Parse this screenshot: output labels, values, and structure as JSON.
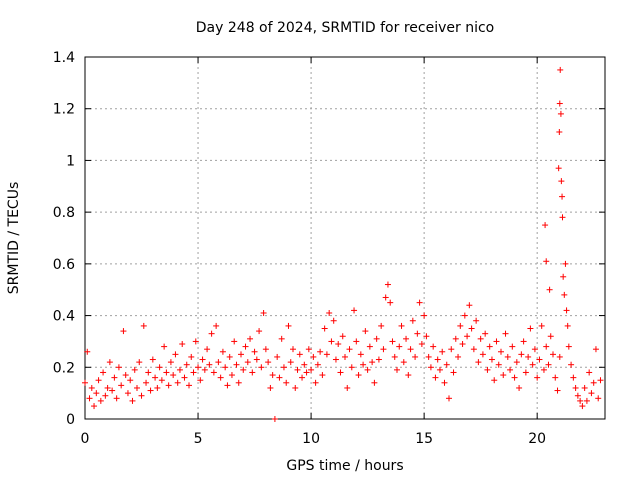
{
  "chart_data": {
    "type": "scatter",
    "title": "Day 248 of 2024, SRMTID for receiver nico",
    "xlabel": "GPS time / hours",
    "ylabel": "SRMTID / TECUs",
    "xlim": [
      0,
      23
    ],
    "ylim": [
      0,
      1.4
    ],
    "x_ticks": [
      0,
      5,
      10,
      15,
      20
    ],
    "x_tick_labels": [
      "0",
      "5",
      "10",
      "15",
      "20"
    ],
    "y_ticks": [
      0,
      0.2,
      0.4,
      0.6,
      0.8,
      1.0,
      1.2,
      1.4
    ],
    "y_tick_labels": [
      "0",
      "0.2",
      "0.4",
      "0.6",
      "0.8",
      "1",
      "1.2",
      "1.4"
    ],
    "grid": true,
    "marker": "+",
    "marker_color": "#ff0000",
    "series": [
      {
        "name": "SRMTID",
        "points": [
          [
            0.0,
            0.14
          ],
          [
            0.1,
            0.26
          ],
          [
            0.2,
            0.08
          ],
          [
            0.3,
            0.12
          ],
          [
            0.4,
            0.05
          ],
          [
            0.5,
            0.1
          ],
          [
            0.6,
            0.15
          ],
          [
            0.7,
            0.07
          ],
          [
            0.8,
            0.18
          ],
          [
            0.9,
            0.09
          ],
          [
            1.0,
            0.12
          ],
          [
            1.1,
            0.22
          ],
          [
            1.2,
            0.11
          ],
          [
            1.3,
            0.16
          ],
          [
            1.4,
            0.08
          ],
          [
            1.5,
            0.2
          ],
          [
            1.6,
            0.13
          ],
          [
            1.7,
            0.34
          ],
          [
            1.8,
            0.17
          ],
          [
            1.9,
            0.1
          ],
          [
            2.0,
            0.15
          ],
          [
            2.1,
            0.07
          ],
          [
            2.2,
            0.19
          ],
          [
            2.3,
            0.12
          ],
          [
            2.4,
            0.22
          ],
          [
            2.5,
            0.09
          ],
          [
            2.6,
            0.36
          ],
          [
            2.7,
            0.14
          ],
          [
            2.8,
            0.18
          ],
          [
            2.9,
            0.11
          ],
          [
            3.0,
            0.23
          ],
          [
            3.1,
            0.16
          ],
          [
            3.2,
            0.12
          ],
          [
            3.3,
            0.2
          ],
          [
            3.4,
            0.15
          ],
          [
            3.5,
            0.28
          ],
          [
            3.6,
            0.18
          ],
          [
            3.7,
            0.13
          ],
          [
            3.8,
            0.22
          ],
          [
            3.9,
            0.17
          ],
          [
            4.0,
            0.25
          ],
          [
            4.1,
            0.14
          ],
          [
            4.2,
            0.19
          ],
          [
            4.3,
            0.29
          ],
          [
            4.4,
            0.16
          ],
          [
            4.5,
            0.21
          ],
          [
            4.6,
            0.13
          ],
          [
            4.7,
            0.24
          ],
          [
            4.8,
            0.18
          ],
          [
            4.9,
            0.3
          ],
          [
            5.0,
            0.2
          ],
          [
            5.1,
            0.15
          ],
          [
            5.2,
            0.23
          ],
          [
            5.3,
            0.19
          ],
          [
            5.4,
            0.27
          ],
          [
            5.5,
            0.21
          ],
          [
            5.6,
            0.33
          ],
          [
            5.7,
            0.18
          ],
          [
            5.8,
            0.36
          ],
          [
            5.9,
            0.22
          ],
          [
            6.0,
            0.16
          ],
          [
            6.1,
            0.26
          ],
          [
            6.2,
            0.2
          ],
          [
            6.3,
            0.13
          ],
          [
            6.4,
            0.24
          ],
          [
            6.5,
            0.17
          ],
          [
            6.6,
            0.3
          ],
          [
            6.7,
            0.21
          ],
          [
            6.8,
            0.14
          ],
          [
            6.9,
            0.25
          ],
          [
            7.0,
            0.19
          ],
          [
            7.1,
            0.28
          ],
          [
            7.2,
            0.22
          ],
          [
            7.3,
            0.31
          ],
          [
            7.4,
            0.18
          ],
          [
            7.5,
            0.26
          ],
          [
            7.6,
            0.23
          ],
          [
            7.7,
            0.34
          ],
          [
            7.8,
            0.2
          ],
          [
            7.9,
            0.41
          ],
          [
            8.0,
            0.27
          ],
          [
            8.1,
            0.22
          ],
          [
            8.2,
            0.12
          ],
          [
            8.3,
            0.17
          ],
          [
            8.4,
            0.0
          ],
          [
            8.5,
            0.24
          ],
          [
            8.6,
            0.16
          ],
          [
            8.7,
            0.31
          ],
          [
            8.8,
            0.2
          ],
          [
            8.9,
            0.14
          ],
          [
            9.0,
            0.36
          ],
          [
            9.1,
            0.22
          ],
          [
            9.2,
            0.27
          ],
          [
            9.3,
            0.12
          ],
          [
            9.4,
            0.19
          ],
          [
            9.5,
            0.25
          ],
          [
            9.6,
            0.16
          ],
          [
            9.7,
            0.21
          ],
          [
            9.8,
            0.18
          ],
          [
            9.9,
            0.27
          ],
          [
            10.0,
            0.19
          ],
          [
            10.1,
            0.24
          ],
          [
            10.2,
            0.14
          ],
          [
            10.3,
            0.21
          ],
          [
            10.4,
            0.26
          ],
          [
            10.5,
            0.17
          ],
          [
            10.6,
            0.35
          ],
          [
            10.7,
            0.25
          ],
          [
            10.8,
            0.41
          ],
          [
            10.9,
            0.3
          ],
          [
            11.0,
            0.38
          ],
          [
            11.1,
            0.23
          ],
          [
            11.2,
            0.29
          ],
          [
            11.3,
            0.18
          ],
          [
            11.4,
            0.32
          ],
          [
            11.5,
            0.24
          ],
          [
            11.6,
            0.12
          ],
          [
            11.7,
            0.27
          ],
          [
            11.8,
            0.2
          ],
          [
            11.9,
            0.42
          ],
          [
            12.0,
            0.3
          ],
          [
            12.1,
            0.17
          ],
          [
            12.2,
            0.25
          ],
          [
            12.3,
            0.21
          ],
          [
            12.4,
            0.34
          ],
          [
            12.5,
            0.19
          ],
          [
            12.6,
            0.28
          ],
          [
            12.7,
            0.22
          ],
          [
            12.8,
            0.14
          ],
          [
            12.9,
            0.31
          ],
          [
            13.0,
            0.23
          ],
          [
            13.1,
            0.36
          ],
          [
            13.2,
            0.27
          ],
          [
            13.3,
            0.47
          ],
          [
            13.4,
            0.52
          ],
          [
            13.5,
            0.45
          ],
          [
            13.6,
            0.3
          ],
          [
            13.7,
            0.24
          ],
          [
            13.8,
            0.19
          ],
          [
            13.9,
            0.28
          ],
          [
            14.0,
            0.36
          ],
          [
            14.1,
            0.22
          ],
          [
            14.2,
            0.31
          ],
          [
            14.3,
            0.17
          ],
          [
            14.4,
            0.27
          ],
          [
            14.5,
            0.38
          ],
          [
            14.6,
            0.24
          ],
          [
            14.7,
            0.33
          ],
          [
            14.8,
            0.45
          ],
          [
            14.9,
            0.29
          ],
          [
            15.0,
            0.4
          ],
          [
            15.1,
            0.32
          ],
          [
            15.2,
            0.24
          ],
          [
            15.3,
            0.2
          ],
          [
            15.4,
            0.28
          ],
          [
            15.5,
            0.16
          ],
          [
            15.6,
            0.23
          ],
          [
            15.7,
            0.19
          ],
          [
            15.8,
            0.26
          ],
          [
            15.9,
            0.14
          ],
          [
            16.0,
            0.21
          ],
          [
            16.1,
            0.08
          ],
          [
            16.2,
            0.27
          ],
          [
            16.3,
            0.18
          ],
          [
            16.4,
            0.31
          ],
          [
            16.5,
            0.24
          ],
          [
            16.6,
            0.36
          ],
          [
            16.7,
            0.29
          ],
          [
            16.8,
            0.4
          ],
          [
            16.9,
            0.32
          ],
          [
            17.0,
            0.44
          ],
          [
            17.1,
            0.35
          ],
          [
            17.2,
            0.27
          ],
          [
            17.3,
            0.38
          ],
          [
            17.4,
            0.22
          ],
          [
            17.5,
            0.31
          ],
          [
            17.6,
            0.25
          ],
          [
            17.7,
            0.33
          ],
          [
            17.8,
            0.19
          ],
          [
            17.9,
            0.28
          ],
          [
            18.0,
            0.23
          ],
          [
            18.1,
            0.15
          ],
          [
            18.2,
            0.3
          ],
          [
            18.3,
            0.21
          ],
          [
            18.4,
            0.26
          ],
          [
            18.5,
            0.17
          ],
          [
            18.6,
            0.33
          ],
          [
            18.7,
            0.24
          ],
          [
            18.8,
            0.19
          ],
          [
            18.9,
            0.28
          ],
          [
            19.0,
            0.16
          ],
          [
            19.1,
            0.22
          ],
          [
            19.2,
            0.12
          ],
          [
            19.3,
            0.25
          ],
          [
            19.4,
            0.3
          ],
          [
            19.5,
            0.18
          ],
          [
            19.6,
            0.24
          ],
          [
            19.7,
            0.35
          ],
          [
            19.8,
            0.21
          ],
          [
            19.9,
            0.27
          ],
          [
            20.0,
            0.16
          ],
          [
            20.1,
            0.23
          ],
          [
            20.2,
            0.36
          ],
          [
            20.3,
            0.19
          ],
          [
            20.4,
            0.28
          ],
          [
            20.5,
            0.21
          ],
          [
            20.6,
            0.32
          ],
          [
            20.7,
            0.25
          ],
          [
            20.8,
            0.16
          ],
          [
            20.9,
            0.11
          ],
          [
            21.0,
            0.24
          ],
          [
            20.35,
            0.75
          ],
          [
            20.4,
            0.61
          ],
          [
            20.55,
            0.5
          ],
          [
            20.95,
            0.97
          ],
          [
            20.98,
            1.11
          ],
          [
            21.0,
            1.22
          ],
          [
            21.02,
            1.35
          ],
          [
            21.05,
            1.18
          ],
          [
            21.07,
            0.92
          ],
          [
            21.1,
            0.86
          ],
          [
            21.12,
            0.78
          ],
          [
            21.15,
            0.55
          ],
          [
            21.2,
            0.48
          ],
          [
            21.25,
            0.6
          ],
          [
            21.3,
            0.42
          ],
          [
            21.35,
            0.36
          ],
          [
            21.4,
            0.28
          ],
          [
            21.5,
            0.21
          ],
          [
            21.6,
            0.16
          ],
          [
            21.7,
            0.12
          ],
          [
            21.8,
            0.09
          ],
          [
            21.9,
            0.07
          ],
          [
            22.0,
            0.05
          ],
          [
            22.1,
            0.12
          ],
          [
            22.2,
            0.07
          ],
          [
            22.3,
            0.18
          ],
          [
            22.4,
            0.1
          ],
          [
            22.5,
            0.14
          ],
          [
            22.6,
            0.27
          ],
          [
            22.7,
            0.08
          ],
          [
            22.8,
            0.15
          ]
        ]
      }
    ]
  }
}
